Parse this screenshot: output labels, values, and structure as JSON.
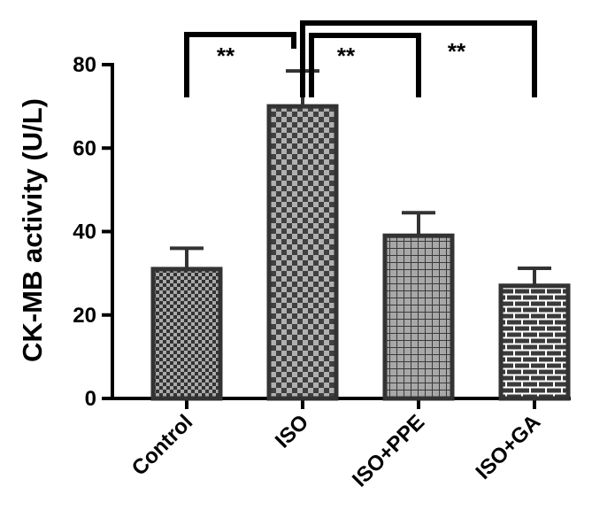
{
  "chart_data": {
    "type": "bar",
    "categories": [
      "Control",
      "ISO",
      "ISO+PPE",
      "ISO+GA"
    ],
    "values": [
      31,
      70,
      39,
      27
    ],
    "errors": [
      5,
      8.5,
      5.5,
      4.2
    ],
    "patterns": [
      "fine-check",
      "coarse-check",
      "grid",
      "brick"
    ],
    "ylabel": "CK-MB activity (U/L)",
    "xlabel": "",
    "ylim": [
      0,
      80
    ],
    "yticks": [
      0,
      20,
      40,
      60,
      80
    ],
    "grid": false,
    "colors": {
      "bar_stroke": "#333333",
      "axis": "#000000",
      "fill_dark": "#333333",
      "fill_light": "#aaaaaa"
    },
    "significance": [
      {
        "from": 0,
        "to": 1,
        "label": "**"
      },
      {
        "from": 1,
        "to": 2,
        "label": "**"
      },
      {
        "from": 1,
        "to": 3,
        "label": "**"
      }
    ]
  }
}
